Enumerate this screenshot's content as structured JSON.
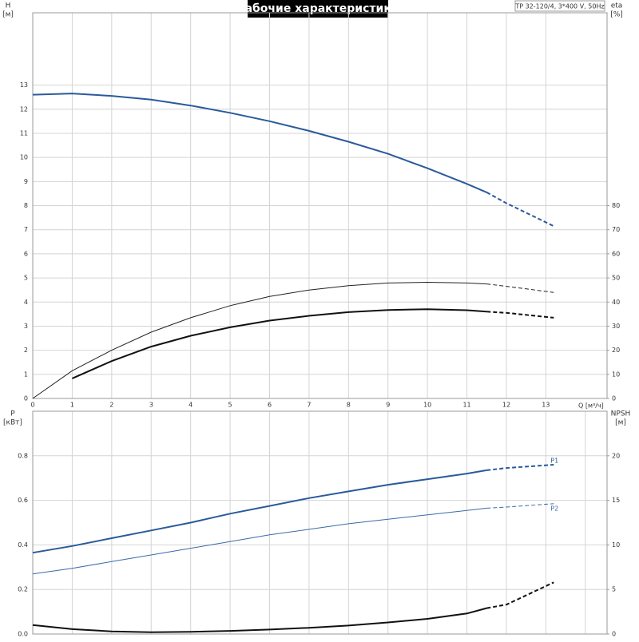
{
  "chart_data": [
    {
      "type": "line",
      "title": "Рабочие характеристики",
      "annotation": "TP 32-120/4, 3*400 V, 50Hz",
      "ylabel": "H",
      "yunit": "[м]",
      "y2label": "eta",
      "y2unit": "[%]",
      "xlabel": "Q [м³/ч]",
      "x": [
        0,
        1,
        2,
        3,
        4,
        5,
        6,
        7,
        8,
        9,
        10,
        11,
        11.5,
        12,
        13.2
      ],
      "dashed_after": 11.5,
      "grid": true,
      "xlim": [
        0,
        14.55
      ],
      "xticks": [
        0,
        1,
        2,
        3,
        4,
        5,
        6,
        7,
        8,
        9,
        10,
        11,
        12,
        13
      ],
      "ylim": [
        0,
        16
      ],
      "yticks": [
        0,
        1,
        2,
        3,
        4,
        5,
        6,
        7,
        8,
        9,
        10,
        11,
        12,
        13
      ],
      "y2lim": [
        0,
        160
      ],
      "y2ticks": [
        0,
        10,
        20,
        30,
        40,
        50,
        60,
        70,
        80
      ],
      "series": [
        {
          "color": "#2a5a9a",
          "width": 2,
          "values": [
            12.6,
            12.65,
            12.55,
            12.4,
            12.15,
            11.85,
            11.5,
            11.1,
            10.65,
            10.15,
            9.55,
            8.9,
            8.55,
            8.1,
            7.15
          ]
        },
        {
          "axis": "y2",
          "color": "#222222",
          "width": 1,
          "values": [
            0,
            11.5,
            20,
            27.5,
            33.5,
            38.5,
            42.3,
            45,
            46.8,
            47.9,
            48.2,
            47.9,
            47.5,
            46.5,
            44
          ]
        },
        {
          "axis": "y2",
          "color": "#111111",
          "width": 2,
          "values": [
            null,
            8.3,
            15.5,
            21.5,
            26,
            29.5,
            32.3,
            34.3,
            35.8,
            36.7,
            37,
            36.6,
            36,
            35.5,
            33.5
          ]
        }
      ]
    },
    {
      "type": "line",
      "ylabel": "P",
      "yunit": "[кВт]",
      "y2label": "NPSH",
      "y2unit": "[м]",
      "x": [
        0,
        1,
        2,
        3,
        4,
        5,
        6,
        7,
        8,
        9,
        10,
        11,
        11.5,
        12,
        13.2
      ],
      "dashed_after": 11.5,
      "grid": true,
      "xlim": [
        0,
        14.55
      ],
      "xgrid": [
        0,
        1,
        2,
        3,
        4,
        5,
        6,
        7,
        8,
        9,
        10,
        11,
        12,
        13,
        14
      ],
      "ylim": [
        0,
        1
      ],
      "yticks": [
        {
          "value": 0,
          "label": "0.0"
        },
        0.2,
        0.4,
        0.6,
        0.8
      ],
      "y2lim": [
        0,
        25
      ],
      "y2ticks": [
        0,
        5,
        10,
        15,
        20
      ],
      "series": [
        {
          "name": "P1",
          "color": "#2a5a9a",
          "width": 2,
          "values": [
            0.365,
            0.395,
            0.43,
            0.465,
            0.5,
            0.54,
            0.575,
            0.61,
            0.64,
            0.67,
            0.695,
            0.72,
            0.735,
            0.745,
            0.76
          ]
        },
        {
          "name": "P2",
          "color": "#3a6aaa",
          "width": 1,
          "values": [
            0.27,
            0.295,
            0.325,
            0.355,
            0.385,
            0.415,
            0.445,
            0.47,
            0.495,
            0.515,
            0.535,
            0.555,
            0.565,
            0.57,
            0.585
          ]
        },
        {
          "axis": "y2",
          "color": "#111111",
          "width": 2,
          "values": [
            1.0,
            0.55,
            0.3,
            0.2,
            0.25,
            0.35,
            0.5,
            0.7,
            0.95,
            1.3,
            1.7,
            2.3,
            2.9,
            3.3,
            5.8
          ]
        }
      ]
    }
  ]
}
